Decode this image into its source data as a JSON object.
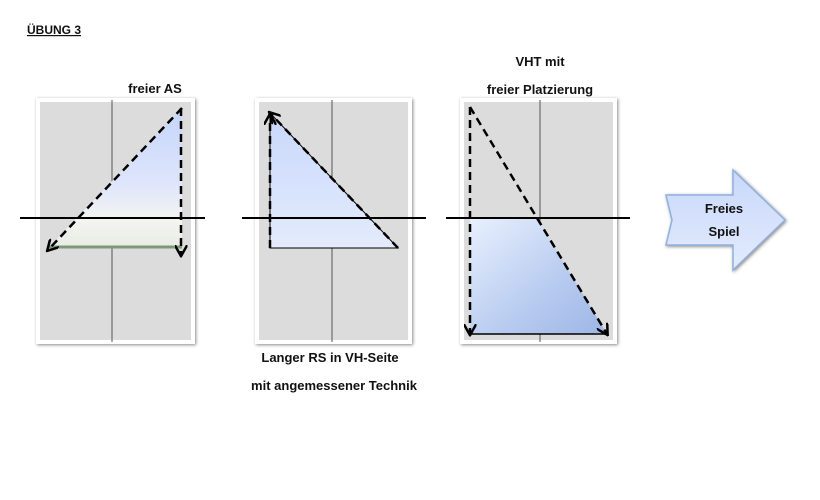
{
  "header": {
    "title": "ÜBUNG 3"
  },
  "drills": [
    {
      "labels": [
        "freier AS"
      ]
    },
    {
      "labels": [
        "Langer RS in VH-Seite",
        "mit angemessener Technik"
      ]
    },
    {
      "labels": [
        "VHT mit",
        "freier Platzierung"
      ]
    }
  ],
  "final_step": {
    "lines": [
      "Freies",
      "Spiel"
    ]
  }
}
